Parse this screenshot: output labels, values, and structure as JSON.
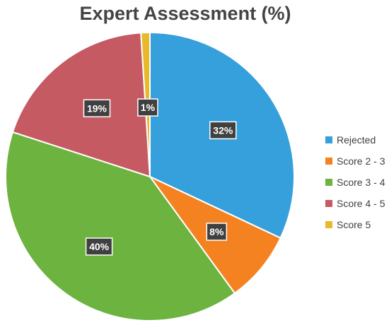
{
  "chart_data": {
    "type": "pie",
    "title": "Expert Assessment (%)",
    "categories": [
      "Rejected",
      "Score 2 - 3",
      "Score 3 - 4",
      "Score 4 - 5",
      "Score 5"
    ],
    "values": [
      32,
      8,
      40,
      19,
      1
    ],
    "data_labels": [
      "32%",
      "8%",
      "40%",
      "19%",
      "1%"
    ],
    "colors": [
      "#35a0dc",
      "#f58220",
      "#6cb33f",
      "#c55a63",
      "#e8b92b"
    ],
    "start_angle": "top, clockwise",
    "legend_position": "right"
  }
}
